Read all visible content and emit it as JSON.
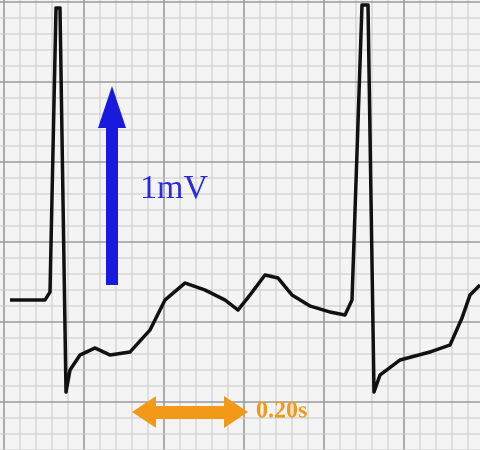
{
  "labels": {
    "amplitude": "1mV",
    "duration": "0.20s"
  }
}
